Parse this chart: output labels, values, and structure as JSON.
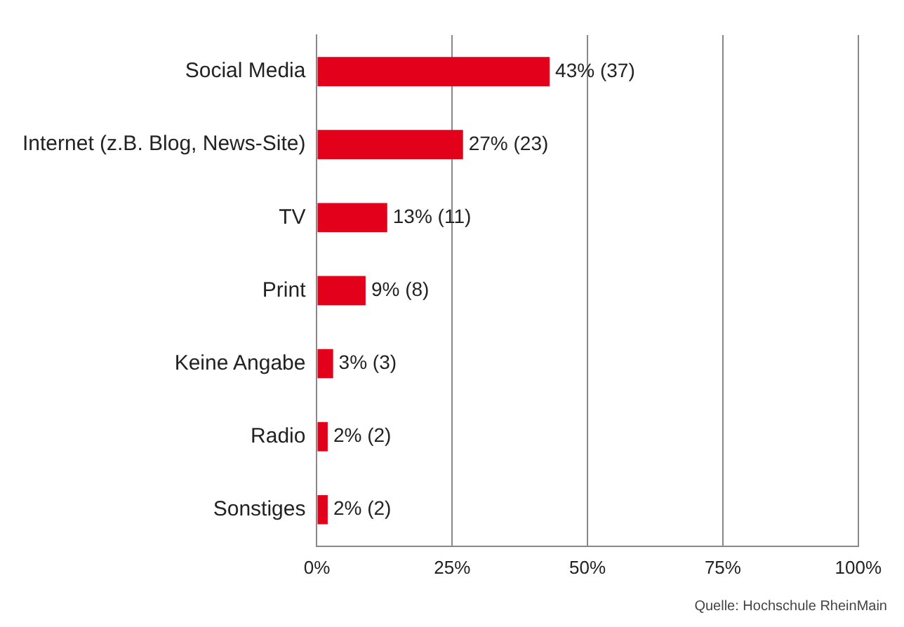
{
  "chart_data": {
    "type": "bar",
    "orientation": "horizontal",
    "categories": [
      "Social Media",
      "Internet (z.B. Blog, News-Site)",
      "TV",
      "Print",
      "Keine Angabe",
      "Radio",
      "Sonstiges"
    ],
    "values": [
      43,
      27,
      13,
      9,
      3,
      2,
      2
    ],
    "value_labels": [
      "43% (37)",
      "27% (23)",
      "13% (11)",
      "9% (8)",
      "3% (3)",
      "2% (2)",
      "2% (2)"
    ],
    "color": "#e2001a",
    "xlim": [
      0,
      100
    ],
    "xticks": [
      {
        "value": 0,
        "label": "0%"
      },
      {
        "value": 25,
        "label": "25%"
      },
      {
        "value": 50,
        "label": "50%"
      },
      {
        "value": 75,
        "label": "75%"
      },
      {
        "value": 100,
        "label": "100%"
      }
    ],
    "grid": "x",
    "annotations": [
      "Quelle: Hochschule RheinMain"
    ]
  }
}
